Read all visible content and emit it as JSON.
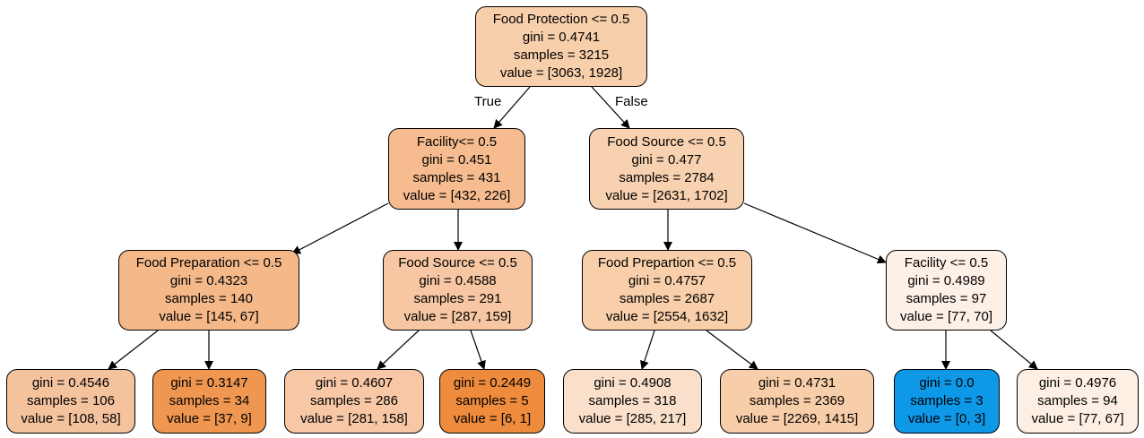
{
  "tree": {
    "edge_labels": {
      "true_label": "True",
      "false_label": "False"
    },
    "nodes": [
      {
        "id": "n0",
        "split": "Food Protection <= 0.5",
        "gini": "gini = 0.4741",
        "samples": "samples = 3215",
        "value": "value = [3063, 1928]",
        "fill": "#f8cfab"
      },
      {
        "id": "n1",
        "split": "Facility<= 0.5",
        "gini": "gini = 0.451",
        "samples": "samples = 431",
        "value": "value = [432, 226]",
        "fill": "#f6bc8f"
      },
      {
        "id": "n2",
        "split": "Food Source <= 0.5",
        "gini": "gini = 0.477",
        "samples": "samples = 2784",
        "value": "value = [2631, 1702]",
        "fill": "#f8d1b0"
      },
      {
        "id": "n3",
        "split": "Food Preparation <= 0.5",
        "gini": "gini = 0.4323",
        "samples": "samples = 140",
        "value": "value = [145, 67]",
        "fill": "#f4b889"
      },
      {
        "id": "n4",
        "split": "Food Source <= 0.5",
        "gini": "gini = 0.4588",
        "samples": "samples = 291",
        "value": "value = [287, 159]",
        "fill": "#f7c7a3"
      },
      {
        "id": "n5",
        "split": "Food Prepartion <= 0.5",
        "gini": "gini = 0.4757",
        "samples": "samples = 2687",
        "value": "value = [2554, 1632]",
        "fill": "#f8cfaa"
      },
      {
        "id": "n6",
        "split": "Facility <= 0.5",
        "gini": "gini = 0.4989",
        "samples": "samples = 97",
        "value": "value = [77, 70]",
        "fill": "#fdf0e7"
      },
      {
        "id": "n7",
        "split": "",
        "gini": "gini = 0.4546",
        "samples": "samples = 106",
        "value": "value = [108, 58]",
        "fill": "#f5c29e"
      },
      {
        "id": "n8",
        "split": "",
        "gini": "gini = 0.3147",
        "samples": "samples = 34",
        "value": "value = [37, 9]",
        "fill": "#ef9650"
      },
      {
        "id": "n9",
        "split": "",
        "gini": "gini = 0.4607",
        "samples": "samples = 286",
        "value": "value = [281, 158]",
        "fill": "#f7c7a6"
      },
      {
        "id": "n10",
        "split": "",
        "gini": "gini = 0.2449",
        "samples": "samples = 5",
        "value": "value = [6, 1]",
        "fill": "#ef8b3c"
      },
      {
        "id": "n11",
        "split": "",
        "gini": "gini = 0.4908",
        "samples": "samples = 318",
        "value": "value = [285, 217]",
        "fill": "#fae0ca"
      },
      {
        "id": "n12",
        "split": "",
        "gini": "gini = 0.4731",
        "samples": "samples = 2369",
        "value": "value = [2269, 1415]",
        "fill": "#f8cda9"
      },
      {
        "id": "n13",
        "split": "",
        "gini": "gini = 0.0",
        "samples": "samples = 3",
        "value": "value = [0, 3]",
        "fill": "#0d99e8"
      },
      {
        "id": "n14",
        "split": "",
        "gini": "gini = 0.4976",
        "samples": "samples = 94",
        "value": "value = [77, 67]",
        "fill": "#fdefe3"
      }
    ],
    "edges": [
      {
        "from": "n0",
        "to": "n1",
        "label": "true_label"
      },
      {
        "from": "n0",
        "to": "n2",
        "label": "false_label"
      },
      {
        "from": "n1",
        "to": "n3"
      },
      {
        "from": "n1",
        "to": "n4"
      },
      {
        "from": "n2",
        "to": "n5"
      },
      {
        "from": "n2",
        "to": "n6"
      },
      {
        "from": "n3",
        "to": "n7"
      },
      {
        "from": "n3",
        "to": "n8"
      },
      {
        "from": "n4",
        "to": "n9"
      },
      {
        "from": "n4",
        "to": "n10"
      },
      {
        "from": "n5",
        "to": "n11"
      },
      {
        "from": "n5",
        "to": "n12"
      },
      {
        "from": "n6",
        "to": "n13"
      },
      {
        "from": "n6",
        "to": "n14"
      }
    ]
  }
}
